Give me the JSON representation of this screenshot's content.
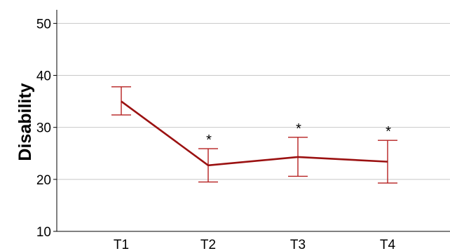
{
  "chart_data": {
    "type": "line",
    "title": "",
    "xlabel": "",
    "ylabel": "Disability",
    "categories": [
      "T1",
      "T2",
      "T3",
      "T4"
    ],
    "series": [
      {
        "values": [
          35.0,
          22.7,
          24.3,
          23.4
        ],
        "error_low": [
          32.4,
          19.5,
          20.6,
          19.3
        ],
        "error_high": [
          37.8,
          25.9,
          28.1,
          27.5
        ],
        "annotations": [
          "",
          "*",
          "*",
          "*"
        ]
      }
    ],
    "ylim": [
      10,
      54.5
    ],
    "yticks": [
      10,
      20,
      30,
      40,
      50
    ],
    "grid": "horizontal",
    "legend": "none",
    "colors": {
      "line": "#9b1111",
      "error_bar": "#b51f1f",
      "grid": "#c8c8c8",
      "axis": "#000000"
    }
  }
}
